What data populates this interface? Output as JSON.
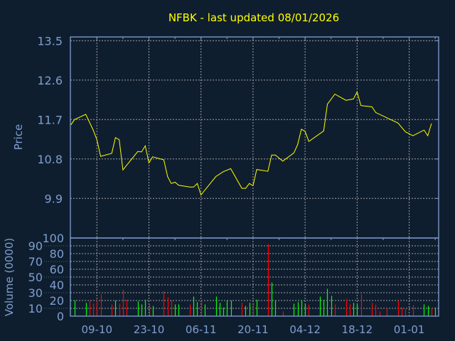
{
  "chart_data": [
    {
      "type": "line",
      "title": "NFBK - last updated 08/01/2026",
      "ylabel": "Price",
      "ylim": [
        9.45,
        13.5
      ],
      "yticks": [
        "13.5",
        "12.6",
        "11.7",
        "10.8",
        "9.9"
      ],
      "grid": true,
      "colors": {
        "line": "#ffff00"
      },
      "points": [
        [
          "2025-10-02",
          11.58
        ],
        [
          "2025-10-03",
          11.7
        ],
        [
          "2025-10-06",
          11.82
        ],
        [
          "2025-10-08",
          11.46
        ],
        [
          "2025-10-09",
          11.24
        ],
        [
          "2025-10-10",
          10.86
        ],
        [
          "2025-10-13",
          10.93
        ],
        [
          "2025-10-14",
          11.29
        ],
        [
          "2025-10-15",
          11.24
        ],
        [
          "2025-10-16",
          10.55
        ],
        [
          "2025-10-20",
          10.97
        ],
        [
          "2025-10-21",
          10.96
        ],
        [
          "2025-10-22",
          11.1
        ],
        [
          "2025-10-23",
          10.71
        ],
        [
          "2025-10-24",
          10.85
        ],
        [
          "2025-10-27",
          10.78
        ],
        [
          "2025-10-28",
          10.4
        ],
        [
          "2025-10-29",
          10.24
        ],
        [
          "2025-10-30",
          10.27
        ],
        [
          "2025-10-31",
          10.2
        ],
        [
          "2025-11-03",
          10.16
        ],
        [
          "2025-11-04",
          10.16
        ],
        [
          "2025-11-05",
          10.24
        ],
        [
          "2025-11-06",
          9.98
        ],
        [
          "2025-11-10",
          10.4
        ],
        [
          "2025-11-12",
          10.51
        ],
        [
          "2025-11-14",
          10.58
        ],
        [
          "2025-11-17",
          10.13
        ],
        [
          "2025-11-18",
          10.13
        ],
        [
          "2025-11-19",
          10.24
        ],
        [
          "2025-11-20",
          10.19
        ],
        [
          "2025-11-21",
          10.56
        ],
        [
          "2025-11-24",
          10.52
        ],
        [
          "2025-11-25",
          10.89
        ],
        [
          "2025-11-26",
          10.89
        ],
        [
          "2025-11-28",
          10.75
        ],
        [
          "2025-12-01",
          10.94
        ],
        [
          "2025-12-02",
          11.13
        ],
        [
          "2025-12-03",
          11.48
        ],
        [
          "2025-12-04",
          11.43
        ],
        [
          "2025-12-05",
          11.2
        ],
        [
          "2025-12-09",
          11.44
        ],
        [
          "2025-12-10",
          12.05
        ],
        [
          "2025-12-12",
          12.28
        ],
        [
          "2025-12-15",
          12.14
        ],
        [
          "2025-12-17",
          12.17
        ],
        [
          "2025-12-18",
          12.33
        ],
        [
          "2025-12-19",
          12.02
        ],
        [
          "2025-12-22",
          11.99
        ],
        [
          "2025-12-23",
          11.86
        ],
        [
          "2025-12-29",
          11.62
        ],
        [
          "2025-12-31",
          11.42
        ],
        [
          "2026-01-02",
          11.33
        ],
        [
          "2026-01-05",
          11.46
        ],
        [
          "2026-01-06",
          11.33
        ],
        [
          "2026-01-07",
          11.61
        ]
      ]
    },
    {
      "type": "bar",
      "ylabel": "Volume (0000)",
      "ylim": [
        0,
        100
      ],
      "yticks": [
        "0",
        "10",
        "20",
        "30",
        "40",
        "50",
        "60",
        "70",
        "80",
        "90",
        "100"
      ],
      "xticks": [
        "09-10",
        "23-10",
        "06-11",
        "20-11",
        "04-12",
        "18-12",
        "01-01"
      ],
      "xtick_dates": [
        "2025-10-09",
        "2025-10-23",
        "2025-11-06",
        "2025-11-20",
        "2025-12-04",
        "2025-12-18",
        "2026-01-01"
      ],
      "grid": true,
      "colors": {
        "up": "#00ff00",
        "down": "#ff0000"
      },
      "bars": [
        [
          "2025-10-03",
          20,
          "up"
        ],
        [
          "2025-10-06",
          17,
          "up"
        ],
        [
          "2025-10-07",
          20,
          "down"
        ],
        [
          "2025-10-08",
          16,
          "down"
        ],
        [
          "2025-10-09",
          20,
          "down"
        ],
        [
          "2025-10-10",
          28,
          "down"
        ],
        [
          "2025-10-13",
          15,
          "down"
        ],
        [
          "2025-10-14",
          20,
          "up"
        ],
        [
          "2025-10-15",
          16,
          "down"
        ],
        [
          "2025-10-16",
          34,
          "down"
        ],
        [
          "2025-10-17",
          21,
          "down"
        ],
        [
          "2025-10-20",
          19,
          "up"
        ],
        [
          "2025-10-21",
          15,
          "up"
        ],
        [
          "2025-10-22",
          21,
          "up"
        ],
        [
          "2025-10-23",
          15,
          "down"
        ],
        [
          "2025-10-24",
          13,
          "up"
        ],
        [
          "2025-10-27",
          32,
          "down"
        ],
        [
          "2025-10-28",
          24,
          "down"
        ],
        [
          "2025-10-29",
          20,
          "down"
        ],
        [
          "2025-10-30",
          15,
          "up"
        ],
        [
          "2025-10-31",
          15,
          "up"
        ],
        [
          "2025-11-03",
          15,
          "down"
        ],
        [
          "2025-11-04",
          25,
          "up"
        ],
        [
          "2025-11-05",
          18,
          "up"
        ],
        [
          "2025-11-06",
          20,
          "down"
        ],
        [
          "2025-11-07",
          15,
          "up"
        ],
        [
          "2025-11-10",
          25,
          "up"
        ],
        [
          "2025-11-11",
          17,
          "up"
        ],
        [
          "2025-11-12",
          11,
          "up"
        ],
        [
          "2025-11-13",
          20,
          "up"
        ],
        [
          "2025-11-14",
          20,
          "up"
        ],
        [
          "2025-11-17",
          17,
          "down"
        ],
        [
          "2025-11-18",
          13,
          "up"
        ],
        [
          "2025-11-19",
          17,
          "up"
        ],
        [
          "2025-11-20",
          17,
          "down"
        ],
        [
          "2025-11-21",
          21,
          "up"
        ],
        [
          "2025-11-24",
          92,
          "down"
        ],
        [
          "2025-11-25",
          43,
          "up"
        ],
        [
          "2025-11-26",
          20,
          "up"
        ],
        [
          "2025-11-28",
          6,
          "down"
        ],
        [
          "2025-12-01",
          16,
          "up"
        ],
        [
          "2025-12-02",
          18,
          "up"
        ],
        [
          "2025-12-03",
          20,
          "up"
        ],
        [
          "2025-12-04",
          15,
          "up"
        ],
        [
          "2025-12-05",
          15,
          "down"
        ],
        [
          "2025-12-08",
          25,
          "up"
        ],
        [
          "2025-12-09",
          21,
          "up"
        ],
        [
          "2025-12-10",
          35,
          "up"
        ],
        [
          "2025-12-11",
          26,
          "up"
        ],
        [
          "2025-12-12",
          15,
          "down"
        ],
        [
          "2025-12-15",
          22,
          "down"
        ],
        [
          "2025-12-16",
          15,
          "down"
        ],
        [
          "2025-12-17",
          17,
          "up"
        ],
        [
          "2025-12-18",
          15,
          "up"
        ],
        [
          "2025-12-19",
          28,
          "down"
        ],
        [
          "2025-12-22",
          17,
          "down"
        ],
        [
          "2025-12-23",
          15,
          "down"
        ],
        [
          "2025-12-24",
          6,
          "down"
        ],
        [
          "2025-12-26",
          10,
          "down"
        ],
        [
          "2025-12-29",
          20,
          "down"
        ],
        [
          "2025-12-30",
          11,
          "down"
        ],
        [
          "2025-12-31",
          9,
          "down"
        ],
        [
          "2026-01-02",
          14,
          "down"
        ],
        [
          "2026-01-05",
          15,
          "up"
        ],
        [
          "2026-01-06",
          13,
          "up"
        ],
        [
          "2026-01-07",
          10,
          "down"
        ],
        [
          "2026-01-08",
          11,
          "up"
        ]
      ]
    }
  ]
}
